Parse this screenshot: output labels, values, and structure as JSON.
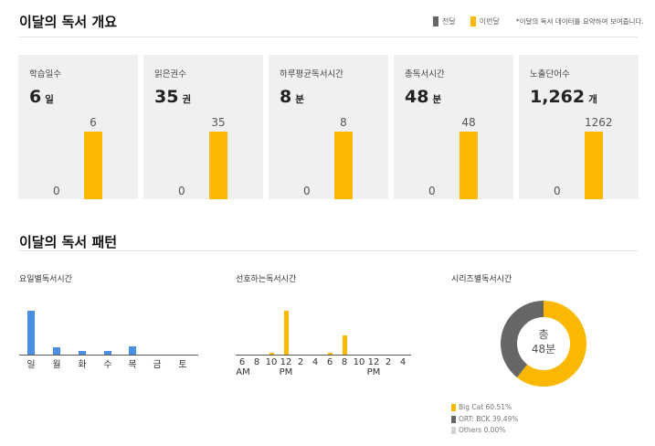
{
  "overview": {
    "title": "이달의 독서 개요",
    "legend": {
      "prev_label": "전달",
      "curr_label": "이번달",
      "prev_color": "#666666",
      "curr_color": "#fbb800",
      "note": "*이달의 독서 데이터를 요약하여 보여줍니다."
    },
    "cards": [
      {
        "label": "학습일수",
        "value": "6",
        "unit": "일",
        "prev": "0",
        "curr": "6"
      },
      {
        "label": "읽은권수",
        "value": "35",
        "unit": "권",
        "prev": "0",
        "curr": "35"
      },
      {
        "label": "하루평균독서시간",
        "value": "8",
        "unit": "분",
        "prev": "0",
        "curr": "8"
      },
      {
        "label": "총독서시간",
        "value": "48",
        "unit": "분",
        "prev": "0",
        "curr": "48"
      },
      {
        "label": "노출단어수",
        "value": "1,262",
        "unit": "개",
        "prev": "0",
        "curr": "1262"
      }
    ]
  },
  "pattern": {
    "title": "이달의 독서 패턴",
    "by_day": {
      "title": "요일별독서시간",
      "bar_color": "#4a90e2",
      "days": [
        "일",
        "월",
        "화",
        "수",
        "목",
        "금",
        "토"
      ],
      "values": [
        10.5,
        1.8,
        0.8,
        0.8,
        2,
        0,
        0
      ]
    },
    "by_hour": {
      "title": "선호하는독서시간",
      "bar_color": "#fbb800",
      "ticks": [
        "6",
        "8",
        "10",
        "12",
        "2",
        "4",
        "6",
        "8",
        "10",
        "12",
        "2",
        "4"
      ],
      "am_label": "AM",
      "pm_label": "PM",
      "values": [
        0,
        0,
        0.5,
        10.5,
        0,
        0,
        0.5,
        4.5,
        0,
        0,
        0,
        0
      ]
    },
    "by_series": {
      "title": "시리즈별독서시간",
      "center_line1": "총",
      "center_line2": "48분",
      "items": [
        {
          "label": "Big Cat 60.51%",
          "percent": 60.51,
          "color": "#fbb800"
        },
        {
          "label": "ORT: BCK 39.49%",
          "percent": 39.49,
          "color": "#666666"
        },
        {
          "label": "Others 0.00%",
          "percent": 0,
          "color": "#d3d3d3"
        }
      ]
    }
  }
}
